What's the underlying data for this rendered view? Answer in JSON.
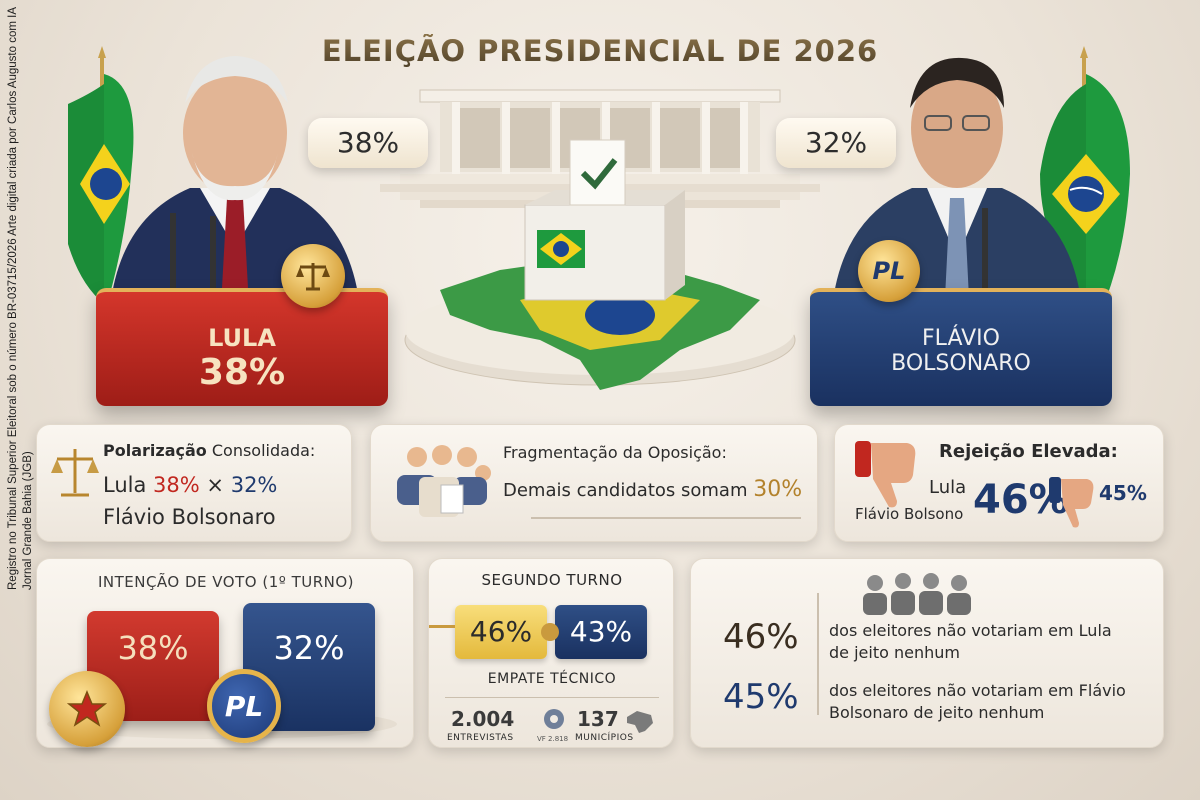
{
  "title": "ELEIÇÃO PRESIDENCIAL DE 2026",
  "credit": "Registro no Tribunal Superior Eleitoral sob o número BR-03715/2026 Arte digital criada por Carlos Augusto com IA Jornal Grande Bahia (JGB)",
  "bubbles": {
    "left": "38%",
    "right": "32%"
  },
  "candidates": {
    "lula": {
      "name": "LULA",
      "pct": "38%",
      "color": "#c1271f"
    },
    "flavio": {
      "name_line1": "FLÁVIO",
      "name_line2": "BOLSONARO",
      "badge": "PL",
      "color": "#1f3a6e"
    }
  },
  "polarizacao": {
    "heading_bold": "Polarização",
    "heading_rest": "Consolidada:",
    "lula_label": "Lula",
    "lula_pct": "38%",
    "times": "×",
    "flavio_pct": "32%",
    "flavio_label": "Flávio Bolsonaro"
  },
  "fragmentacao": {
    "heading": "Fragmentação da Oposição:",
    "text": "Demais candidatos somam",
    "pct": "30%"
  },
  "rejeicao": {
    "heading": "Rejeição Elevada:",
    "lula_label": "Lula",
    "flavio_label": "Flávio Bolsono",
    "big_pct": "46%",
    "small_pct": "45%"
  },
  "intencao": {
    "heading": "INTENÇÃO DE VOTO (1º TURNO)",
    "lula_pct": "38%",
    "flavio_pct": "32%",
    "badge": "PL",
    "lula_value": 38,
    "flavio_value": 32
  },
  "segundo_turno": {
    "heading": "SEGUNDO TURNO",
    "lula_pct": "46%",
    "flavio_pct": "43%",
    "empate": "EMPATE TÉCNICO",
    "entrevistas_num": "2.004",
    "entrevistas_label": "ENTREVISTAS",
    "vf_label": "VF 2.818",
    "municipios_num": "137",
    "municipios_label": "MUNICÍPIOS"
  },
  "rejeicao_detail": {
    "lula_pct": "46%",
    "lula_text": "dos eleitores não votariam em Lula",
    "lula_text2": "de jeito nenhum",
    "flavio_pct": "45%",
    "flavio_text": "dos eleitores não votariam em Flávio",
    "flavio_text2": "Bolsonaro de jeito nenhum"
  },
  "colors": {
    "red": "#c1271f",
    "blue": "#1f3a6e",
    "gold": "#b3822c",
    "flag_green": "#1e9a3e",
    "flag_yellow": "#f4d21c"
  }
}
